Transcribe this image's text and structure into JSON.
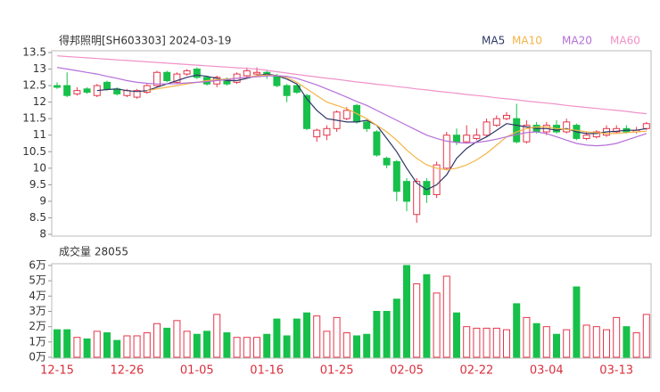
{
  "chart_data": [
    {
      "type": "candlestick",
      "title": "得邦照明[SH603303] 2024-03-19",
      "ylim": [
        8,
        13.5
      ],
      "yticks": [
        8,
        8.5,
        9,
        9.5,
        10,
        10.5,
        11,
        11.5,
        12,
        12.5,
        13,
        13.5
      ],
      "up_color": "#e5364a",
      "down_color": "#17c04a",
      "open": [
        12.5,
        12.5,
        12.25,
        12.4,
        12.2,
        12.6,
        12.4,
        12.2,
        12.15,
        12.3,
        12.5,
        12.9,
        12.6,
        12.85,
        13.0,
        12.75,
        12.55,
        12.7,
        12.6,
        12.8,
        12.85,
        12.9,
        12.8,
        12.5,
        12.5,
        12.2,
        10.95,
        11.0,
        11.2,
        11.5,
        11.9,
        11.4,
        11.1,
        10.3,
        10.2,
        9.6,
        8.6,
        9.6,
        9.2,
        10.0,
        11.0,
        10.8,
        10.9,
        11.0,
        11.3,
        11.5,
        11.5,
        10.8,
        11.3,
        11.1,
        11.3,
        11.1,
        11.3,
        10.9,
        10.95,
        11.0,
        11.1,
        11.2,
        11.1,
        11.2
      ],
      "high": [
        12.6,
        12.9,
        12.45,
        12.45,
        12.55,
        12.65,
        12.45,
        12.4,
        12.4,
        12.55,
        12.95,
        12.95,
        12.9,
        13.0,
        13.05,
        12.8,
        12.8,
        12.75,
        12.9,
        13.05,
        13.05,
        12.95,
        12.85,
        12.55,
        12.55,
        12.25,
        11.2,
        11.3,
        11.75,
        11.85,
        11.95,
        11.45,
        11.15,
        10.35,
        10.25,
        9.7,
        9.7,
        9.7,
        10.2,
        11.1,
        11.2,
        11.3,
        11.2,
        11.5,
        11.6,
        11.7,
        11.95,
        11.45,
        11.4,
        11.4,
        11.45,
        11.5,
        11.35,
        11.1,
        11.15,
        11.3,
        11.3,
        11.3,
        11.25,
        11.4
      ],
      "low": [
        12.4,
        12.15,
        12.2,
        12.25,
        12.15,
        12.35,
        12.2,
        12.15,
        12.1,
        12.25,
        12.45,
        12.6,
        12.55,
        12.8,
        12.7,
        12.5,
        12.45,
        12.5,
        12.55,
        12.75,
        12.8,
        12.7,
        12.45,
        12.0,
        12.25,
        11.15,
        10.8,
        10.85,
        11.1,
        11.45,
        11.35,
        11.1,
        10.35,
        10.0,
        9.0,
        8.7,
        8.35,
        8.95,
        9.1,
        9.95,
        10.7,
        10.75,
        10.85,
        10.95,
        11.25,
        11.45,
        10.75,
        10.75,
        11.05,
        11.0,
        11.05,
        11.05,
        10.85,
        10.85,
        10.9,
        10.95,
        11.05,
        11.05,
        11.05,
        11.15
      ],
      "close": [
        12.45,
        12.2,
        12.35,
        12.3,
        12.5,
        12.4,
        12.25,
        12.35,
        12.35,
        12.5,
        12.9,
        12.65,
        12.85,
        12.95,
        12.75,
        12.55,
        12.75,
        12.55,
        12.85,
        12.95,
        12.9,
        12.8,
        12.5,
        12.2,
        12.3,
        11.2,
        11.15,
        11.2,
        11.7,
        11.75,
        11.4,
        11.2,
        10.4,
        10.1,
        9.3,
        9.0,
        9.6,
        9.2,
        10.1,
        11.0,
        10.8,
        11.0,
        11.0,
        11.4,
        11.5,
        11.6,
        10.8,
        11.3,
        11.1,
        11.3,
        11.1,
        11.4,
        10.9,
        11.0,
        11.1,
        11.2,
        11.2,
        11.1,
        11.15,
        11.35
      ],
      "ma_series": [
        {
          "name": "MA5",
          "color": "#2d3766",
          "values": [
            null,
            null,
            null,
            null,
            12.35,
            12.38,
            12.4,
            12.35,
            12.32,
            12.35,
            12.45,
            12.55,
            12.65,
            12.75,
            12.82,
            12.78,
            12.72,
            12.65,
            12.65,
            12.72,
            12.8,
            12.85,
            12.8,
            12.7,
            12.55,
            12.1,
            11.75,
            11.5,
            11.45,
            11.4,
            11.4,
            11.45,
            11.3,
            10.9,
            10.5,
            10.0,
            9.55,
            9.35,
            9.5,
            9.8,
            10.3,
            10.6,
            10.8,
            10.95,
            11.15,
            11.35,
            11.3,
            11.25,
            11.2,
            11.2,
            11.15,
            11.2,
            11.1,
            11.05,
            11.05,
            11.1,
            11.12,
            11.15,
            11.15,
            11.2
          ]
        },
        {
          "name": "MA10",
          "color": "#f4b447",
          "values": [
            null,
            null,
            null,
            null,
            null,
            null,
            null,
            null,
            null,
            12.35,
            12.4,
            12.45,
            12.5,
            12.55,
            12.6,
            12.65,
            12.68,
            12.7,
            12.72,
            12.75,
            12.8,
            12.82,
            12.8,
            12.75,
            12.6,
            12.4,
            12.2,
            12.0,
            11.9,
            11.8,
            11.65,
            11.5,
            11.3,
            11.1,
            10.85,
            10.55,
            10.3,
            10.1,
            10.0,
            9.95,
            10.0,
            10.1,
            10.25,
            10.45,
            10.7,
            10.95,
            11.1,
            11.2,
            11.25,
            11.25,
            11.2,
            11.18,
            11.15,
            11.1,
            11.08,
            11.05,
            11.05,
            11.08,
            11.1,
            11.12
          ]
        },
        {
          "name": "MA20",
          "color": "#b56fd8",
          "values": [
            13.05,
            13.0,
            12.95,
            12.9,
            12.85,
            12.78,
            12.72,
            12.65,
            12.6,
            12.57,
            12.55,
            12.55,
            12.56,
            12.58,
            12.6,
            12.62,
            12.65,
            12.68,
            12.72,
            12.75,
            12.77,
            12.79,
            12.8,
            12.78,
            12.72,
            12.62,
            12.52,
            12.4,
            12.28,
            12.15,
            12.02,
            11.9,
            11.75,
            11.6,
            11.45,
            11.3,
            11.15,
            11.0,
            10.9,
            10.82,
            10.78,
            10.76,
            10.78,
            10.82,
            10.88,
            10.95,
            11.02,
            11.08,
            11.1,
            11.05,
            10.95,
            10.85,
            10.75,
            10.7,
            10.68,
            10.7,
            10.75,
            10.85,
            10.95,
            11.05
          ]
        },
        {
          "name": "MA60",
          "color": "#f092c8",
          "values": [
            13.4,
            13.38,
            13.36,
            13.34,
            13.32,
            13.3,
            13.28,
            13.26,
            13.24,
            13.22,
            13.2,
            13.18,
            13.16,
            13.14,
            13.12,
            13.1,
            13.08,
            13.06,
            13.04,
            13.02,
            13.0,
            12.96,
            12.92,
            12.88,
            12.84,
            12.8,
            12.76,
            12.72,
            12.69,
            12.65,
            12.61,
            12.58,
            12.54,
            12.51,
            12.47,
            12.44,
            12.4,
            12.37,
            12.33,
            12.3,
            12.27,
            12.23,
            12.2,
            12.17,
            12.13,
            12.1,
            12.07,
            12.03,
            12.0,
            11.97,
            11.94,
            11.9,
            11.87,
            11.84,
            11.81,
            11.78,
            11.75,
            11.72,
            11.68,
            11.65
          ]
        }
      ]
    },
    {
      "type": "bar",
      "title": "成交量 28055",
      "categories": [
        "12-15",
        null,
        null,
        null,
        null,
        null,
        null,
        "12-26",
        null,
        null,
        null,
        null,
        null,
        null,
        "01-05",
        null,
        null,
        null,
        null,
        null,
        null,
        "01-16",
        null,
        null,
        null,
        null,
        null,
        null,
        "01-25",
        null,
        null,
        null,
        null,
        null,
        null,
        "02-05",
        null,
        null,
        null,
        null,
        null,
        null,
        "02-22",
        null,
        null,
        null,
        null,
        null,
        null,
        "03-04",
        null,
        null,
        null,
        null,
        null,
        null,
        "03-13",
        null,
        null,
        null
      ],
      "values": [
        1.8,
        1.8,
        1.3,
        1.2,
        1.7,
        1.6,
        1.1,
        1.4,
        1.4,
        1.6,
        2.2,
        1.9,
        2.4,
        1.7,
        1.5,
        1.7,
        2.8,
        1.6,
        1.3,
        1.3,
        1.3,
        1.5,
        2.5,
        1.4,
        2.5,
        2.9,
        2.7,
        1.7,
        2.6,
        1.6,
        1.4,
        1.5,
        3.0,
        3.0,
        3.8,
        6.0,
        4.8,
        5.4,
        4.2,
        5.3,
        2.9,
        2.0,
        1.9,
        1.9,
        1.9,
        1.8,
        3.5,
        2.6,
        2.2,
        2.0,
        1.5,
        1.8,
        4.6,
        2.1,
        2.0,
        1.8,
        2.6,
        2.0,
        1.6,
        2.8
      ],
      "ylim": [
        0,
        6
      ],
      "yticks": [
        {
          "value": 0,
          "label": "0万"
        },
        {
          "value": 1,
          "label": "1万"
        },
        {
          "value": 2,
          "label": "2万"
        },
        {
          "value": 3,
          "label": "3万"
        },
        {
          "value": 4,
          "label": "4万"
        },
        {
          "value": 5,
          "label": "5万"
        },
        {
          "value": 6,
          "label": "6万"
        }
      ]
    }
  ]
}
